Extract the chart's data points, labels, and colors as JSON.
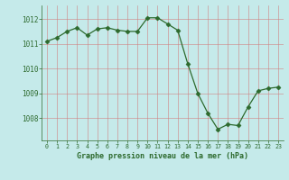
{
  "x": [
    0,
    1,
    2,
    3,
    4,
    5,
    6,
    7,
    8,
    9,
    10,
    11,
    12,
    13,
    14,
    15,
    16,
    17,
    18,
    19,
    20,
    21,
    22,
    23
  ],
  "y": [
    1011.1,
    1011.25,
    1011.5,
    1011.65,
    1011.35,
    1011.6,
    1011.65,
    1011.55,
    1011.5,
    1011.5,
    1012.05,
    1012.05,
    1011.8,
    1011.55,
    1010.2,
    1009.0,
    1008.2,
    1007.55,
    1007.75,
    1007.7,
    1008.45,
    1009.1,
    1009.2,
    1009.25
  ],
  "line_color": "#2d6a2d",
  "marker": "D",
  "marker_size": 2.5,
  "bg_color": "#c5eaea",
  "grid_color": "#b0c8c8",
  "xlabel": "Graphe pression niveau de la mer (hPa)",
  "font_color": "#2d6a2d",
  "yticks": [
    1008,
    1009,
    1010,
    1011,
    1012
  ],
  "ylim": [
    1007.1,
    1012.55
  ],
  "xlim": [
    -0.5,
    23.5
  ]
}
